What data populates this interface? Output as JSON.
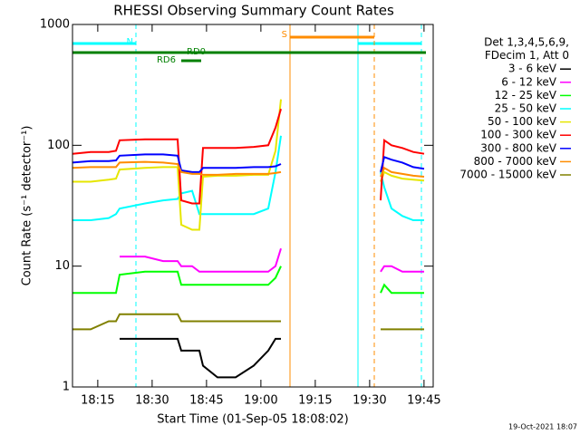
{
  "chart_data": {
    "type": "line",
    "title": "RHESSI Observing Summary Count Rates",
    "xlabel": "Start Time (01-Sep-05 18:08:02)",
    "ylabel": "Count Rate (s⁻¹ detector⁻¹)",
    "ylog": true,
    "ylim": [
      1,
      1000
    ],
    "yticks": [
      1,
      10,
      100,
      1000
    ],
    "xlim": [
      0,
      99.5
    ],
    "xticks": [
      {
        "value": 6.97,
        "label": "18:15"
      },
      {
        "value": 21.97,
        "label": "18:30"
      },
      {
        "value": 36.97,
        "label": "18:45"
      },
      {
        "value": 51.97,
        "label": "19:00"
      },
      {
        "value": 66.97,
        "label": "19:15"
      },
      {
        "value": 81.97,
        "label": "19:30"
      },
      {
        "value": 96.97,
        "label": "19:45"
      }
    ],
    "legend_header": [
      "Det 1,3,4,5,6,9,",
      "FDecim 1, Att 0"
    ],
    "x": [
      0,
      5,
      10,
      12,
      13,
      20,
      25,
      29,
      30,
      33,
      35,
      36,
      40,
      45,
      50,
      54,
      56,
      57.5,
      70,
      85,
      86,
      88,
      91,
      94,
      97
    ],
    "series": [
      {
        "name": "3 - 6 keV",
        "color": "#000000",
        "values": [
          null,
          null,
          null,
          null,
          2.5,
          2.5,
          2.5,
          2.5,
          2,
          2,
          2,
          1.5,
          1.2,
          1.2,
          1.5,
          2,
          2.5,
          2.5,
          null,
          null,
          null,
          null,
          null,
          null,
          null
        ]
      },
      {
        "name": "6 - 12 keV",
        "color": "#ff00ff",
        "values": [
          null,
          null,
          null,
          null,
          12,
          12,
          11,
          11,
          10,
          10,
          9,
          9,
          9,
          9,
          9,
          9,
          10,
          14,
          null,
          9,
          10,
          10,
          9,
          9,
          9
        ]
      },
      {
        "name": "12 - 25 keV",
        "color": "#00ff00",
        "values": [
          6,
          6,
          6,
          6,
          8.5,
          9,
          9,
          9,
          7,
          7,
          7,
          7,
          7,
          7,
          7,
          7,
          8,
          10,
          null,
          6,
          7,
          6,
          6,
          6,
          6
        ]
      },
      {
        "name": "25 - 50 keV",
        "color": "#00ffff",
        "values": [
          24,
          24,
          25,
          27,
          30,
          33,
          35,
          36,
          40,
          42,
          27,
          27,
          27,
          27,
          27,
          30,
          60,
          120,
          null,
          60,
          45,
          30,
          26,
          24,
          24
        ]
      },
      {
        "name": "50 - 100 keV",
        "color": "#e6e600",
        "values": [
          50,
          50,
          52,
          53,
          63,
          65,
          66,
          66,
          22,
          20,
          20,
          55,
          56,
          56,
          57,
          57,
          90,
          240,
          null,
          50,
          60,
          56,
          53,
          52,
          51
        ]
      },
      {
        "name": "100 - 300 keV",
        "color": "#ff0000",
        "values": [
          85,
          88,
          88,
          90,
          110,
          112,
          112,
          112,
          35,
          33,
          33,
          95,
          95,
          95,
          97,
          100,
          140,
          200,
          null,
          35,
          110,
          100,
          95,
          88,
          85
        ]
      },
      {
        "name": "300 - 800 keV",
        "color": "#0000ff",
        "values": [
          72,
          74,
          74,
          75,
          82,
          84,
          84,
          82,
          62,
          60,
          60,
          65,
          65,
          65,
          66,
          66,
          67,
          70,
          null,
          60,
          80,
          76,
          72,
          66,
          64
        ]
      },
      {
        "name": "800 - 7000 keV",
        "color": "#ff8c00",
        "values": [
          65,
          66,
          66,
          66,
          72,
          73,
          72,
          70,
          60,
          58,
          58,
          57,
          57,
          58,
          58,
          58,
          59,
          60,
          null,
          55,
          65,
          60,
          58,
          56,
          55
        ]
      },
      {
        "name": "7000 - 15000 keV",
        "color": "#808000",
        "values": [
          3,
          3,
          3.5,
          3.5,
          4,
          4,
          4,
          4,
          3.5,
          3.5,
          3.5,
          3.5,
          3.5,
          3.5,
          3.5,
          3.5,
          3.5,
          3.5,
          null,
          3,
          3,
          3,
          3,
          3,
          3
        ]
      }
    ],
    "annotations": [
      {
        "label": "N",
        "color": "#00ffff",
        "start": 0,
        "end": 17.5
      },
      {
        "color": "#00ffff",
        "start": 78.75,
        "end": 96.25
      },
      {
        "label": "S",
        "color": "#ff8c00",
        "start": 60,
        "end": 83.25
      },
      {
        "label": "RD0",
        "color": "#008000",
        "start": 0,
        "end": 97.5
      },
      {
        "label": "RD6",
        "color": "#008000",
        "start": 30,
        "end": 35.5
      }
    ],
    "timestamp": "19-Oct-2021 18:07"
  }
}
